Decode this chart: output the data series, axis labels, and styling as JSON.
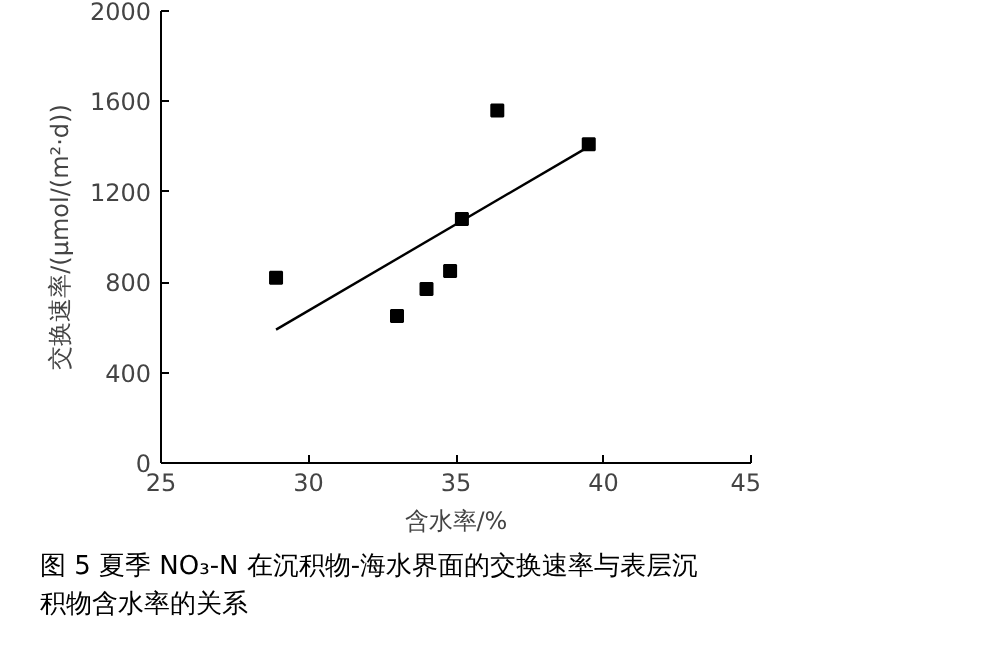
{
  "chart_data": {
    "type": "scatter",
    "xlabel": "含水率/%",
    "ylabel": "交换速率/(μmol/(m²·d))",
    "xlim": [
      25,
      45
    ],
    "xticks": [
      25,
      30,
      35,
      40,
      45
    ],
    "ylim": [
      0,
      2000
    ],
    "yticks": [
      0,
      400,
      800,
      1200,
      1600,
      2000
    ],
    "grid": false,
    "series": [
      {
        "color": "#000000",
        "marker": "square",
        "x": [
          28.9,
          33.0,
          34.0,
          34.8,
          35.2,
          36.4,
          39.5
        ],
        "values": [
          820,
          650,
          770,
          850,
          1080,
          1560,
          1410
        ]
      },
      {
        "type": "line",
        "color": "#000000",
        "x": [
          28.9,
          39.5
        ],
        "values": [
          590,
          1400
        ]
      }
    ],
    "annotations": [
      "图 5  夏季 NO₃-N 在沉积物-海水界面的交换速率与表层沉积物含水率的关系"
    ]
  }
}
